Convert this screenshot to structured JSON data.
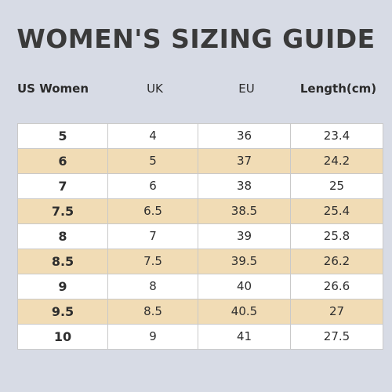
{
  "title": "WOMEN'S SIZING GUIDE",
  "columns": [
    "US Women",
    "UK",
    "EU",
    "Length(cm)"
  ],
  "rows": [
    [
      "5",
      "4",
      "36",
      "23.4"
    ],
    [
      "6",
      "5",
      "37",
      "24.2"
    ],
    [
      "7",
      "6",
      "38",
      "25"
    ],
    [
      "7.5",
      "6.5",
      "38.5",
      "25.4"
    ],
    [
      "8",
      "7",
      "39",
      "25.8"
    ],
    [
      "8.5",
      "7.5",
      "39.5",
      "26.2"
    ],
    [
      "9",
      "8",
      "40",
      "26.6"
    ],
    [
      "9.5",
      "8.5",
      "40.5",
      "27"
    ],
    [
      "10",
      "9",
      "41",
      "27.5"
    ]
  ],
  "colors": {
    "background": "#d7dbe5",
    "row_highlight": "#f1dcb5",
    "row_plain": "#ffffff"
  }
}
